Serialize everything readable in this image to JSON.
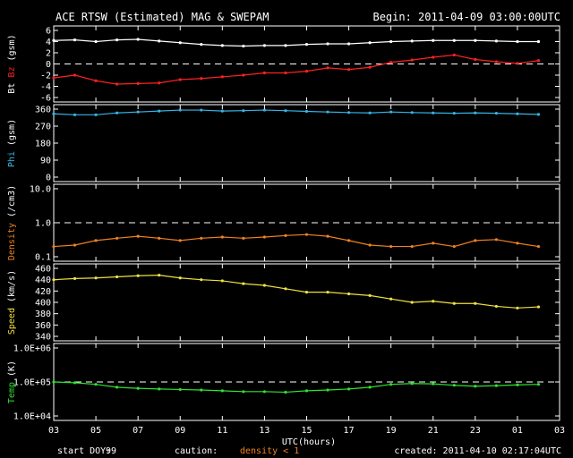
{
  "title": "ACE RTSW (Estimated) MAG & SWEPAM",
  "begin": "Begin: 2011-04-09 03:00:00UTC",
  "x_axis": {
    "label": "UTC(hours)",
    "ticks": [
      "03",
      "05",
      "07",
      "09",
      "11",
      "13",
      "15",
      "17",
      "19",
      "21",
      "23",
      "01",
      "03"
    ]
  },
  "footer": {
    "start_doy_label": "start DOY:",
    "start_doy_value": "99",
    "caution_label": "caution:",
    "caution_value": "density < 1",
    "created": "created: 2011-04-10 02:17:04UTC"
  },
  "colors": {
    "bt": "#ffffff",
    "bz": "#ff2020",
    "phi": "#36b4e6",
    "density": "#f08020",
    "speed": "#f0e040",
    "temp": "#30e030",
    "axis": "#ffffff",
    "caution": "#f08020"
  },
  "chart_data": [
    {
      "type": "scatter",
      "title": "MAG",
      "ylabel_parts": [
        "Bt",
        "Bz",
        "(gsm)"
      ],
      "ylim": [
        -6,
        6
      ],
      "yticks": [
        "6",
        "4",
        "2",
        "0",
        "-2",
        "-4",
        "-6"
      ],
      "reference_line": 0,
      "series": [
        {
          "name": "Bt",
          "x": [
            0,
            1,
            2,
            3,
            4,
            5,
            6,
            7,
            8,
            9,
            10,
            11,
            12,
            13,
            14,
            15,
            16,
            17,
            18,
            19,
            20,
            21,
            22,
            23
          ],
          "y": [
            4.2,
            4.3,
            4.0,
            4.3,
            4.4,
            4.1,
            3.8,
            3.5,
            3.3,
            3.2,
            3.3,
            3.3,
            3.5,
            3.6,
            3.6,
            3.8,
            4.0,
            4.1,
            4.2,
            4.2,
            4.2,
            4.1,
            4.0,
            4.0
          ]
        },
        {
          "name": "Bz",
          "x": [
            0,
            1,
            2,
            3,
            4,
            5,
            6,
            7,
            8,
            9,
            10,
            11,
            12,
            13,
            14,
            15,
            16,
            17,
            18,
            19,
            20,
            21,
            22,
            23
          ],
          "y": [
            -2.5,
            -2.0,
            -3.0,
            -3.6,
            -3.5,
            -3.4,
            -2.8,
            -2.6,
            -2.3,
            -2.0,
            -1.6,
            -1.6,
            -1.3,
            -0.7,
            -1.0,
            -0.6,
            0.3,
            0.7,
            1.2,
            1.6,
            0.8,
            0.4,
            0.1,
            0.6
          ]
        }
      ]
    },
    {
      "type": "scatter",
      "title": "Phi",
      "ylabel_parts": [
        "Phi",
        "(gsm)"
      ],
      "ylim": [
        0,
        360
      ],
      "yticks": [
        "360",
        "270",
        "180",
        "90",
        "0"
      ],
      "series": [
        {
          "name": "Phi",
          "x": [
            0,
            1,
            2,
            3,
            4,
            5,
            6,
            7,
            8,
            9,
            10,
            11,
            12,
            13,
            14,
            15,
            16,
            17,
            18,
            19,
            20,
            21,
            22,
            23
          ],
          "y": [
            335,
            330,
            330,
            340,
            345,
            350,
            355,
            355,
            350,
            352,
            355,
            352,
            348,
            345,
            342,
            340,
            345,
            342,
            340,
            338,
            340,
            338,
            335,
            332
          ]
        }
      ]
    },
    {
      "type": "scatter",
      "title": "Density",
      "ylabel_parts": [
        "Density",
        "(/cm3)"
      ],
      "ylim": [
        0.1,
        10
      ],
      "scale": "log",
      "yticks": [
        "10.0",
        "1.0",
        "0.1"
      ],
      "reference_line": 1.0,
      "series": [
        {
          "name": "Density",
          "x": [
            0,
            1,
            2,
            3,
            4,
            5,
            6,
            7,
            8,
            9,
            10,
            11,
            12,
            13,
            14,
            15,
            16,
            17,
            18,
            19,
            20,
            21,
            22,
            23
          ],
          "y": [
            0.2,
            0.22,
            0.3,
            0.35,
            0.4,
            0.35,
            0.3,
            0.35,
            0.38,
            0.35,
            0.38,
            0.42,
            0.45,
            0.4,
            0.3,
            0.22,
            0.2,
            0.2,
            0.25,
            0.2,
            0.3,
            0.32,
            0.25,
            0.2
          ]
        }
      ]
    },
    {
      "type": "scatter",
      "title": "Speed",
      "ylabel_parts": [
        "Speed",
        "(km/s)"
      ],
      "ylim": [
        340,
        460
      ],
      "yticks": [
        "460",
        "440",
        "420",
        "400",
        "380",
        "360",
        "340"
      ],
      "series": [
        {
          "name": "Speed",
          "x": [
            0,
            1,
            2,
            3,
            4,
            5,
            6,
            7,
            8,
            9,
            10,
            11,
            12,
            13,
            14,
            15,
            16,
            17,
            18,
            19,
            20,
            21,
            22,
            23
          ],
          "y": [
            440,
            442,
            443,
            445,
            447,
            448,
            443,
            440,
            438,
            433,
            430,
            424,
            418,
            418,
            415,
            412,
            406,
            400,
            402,
            398,
            398,
            393,
            390,
            392
          ]
        }
      ]
    },
    {
      "type": "scatter",
      "title": "Temp",
      "ylabel_parts": [
        "Temp",
        "(K)"
      ],
      "ylim": [
        10000,
        1000000
      ],
      "scale": "log",
      "yticks": [
        "1.0E+06",
        "1.0E+05",
        "1.0E+04"
      ],
      "reference_line": 100000,
      "series": [
        {
          "name": "Temp",
          "x": [
            0,
            1,
            2,
            3,
            4,
            5,
            6,
            7,
            8,
            9,
            10,
            11,
            12,
            13,
            14,
            15,
            16,
            17,
            18,
            19,
            20,
            21,
            22,
            23
          ],
          "y": [
            100000,
            95000,
            85000,
            70000,
            65000,
            62000,
            60000,
            58000,
            55000,
            52000,
            52000,
            50000,
            55000,
            58000,
            62000,
            70000,
            85000,
            90000,
            88000,
            80000,
            75000,
            78000,
            82000,
            85000
          ]
        }
      ]
    }
  ]
}
